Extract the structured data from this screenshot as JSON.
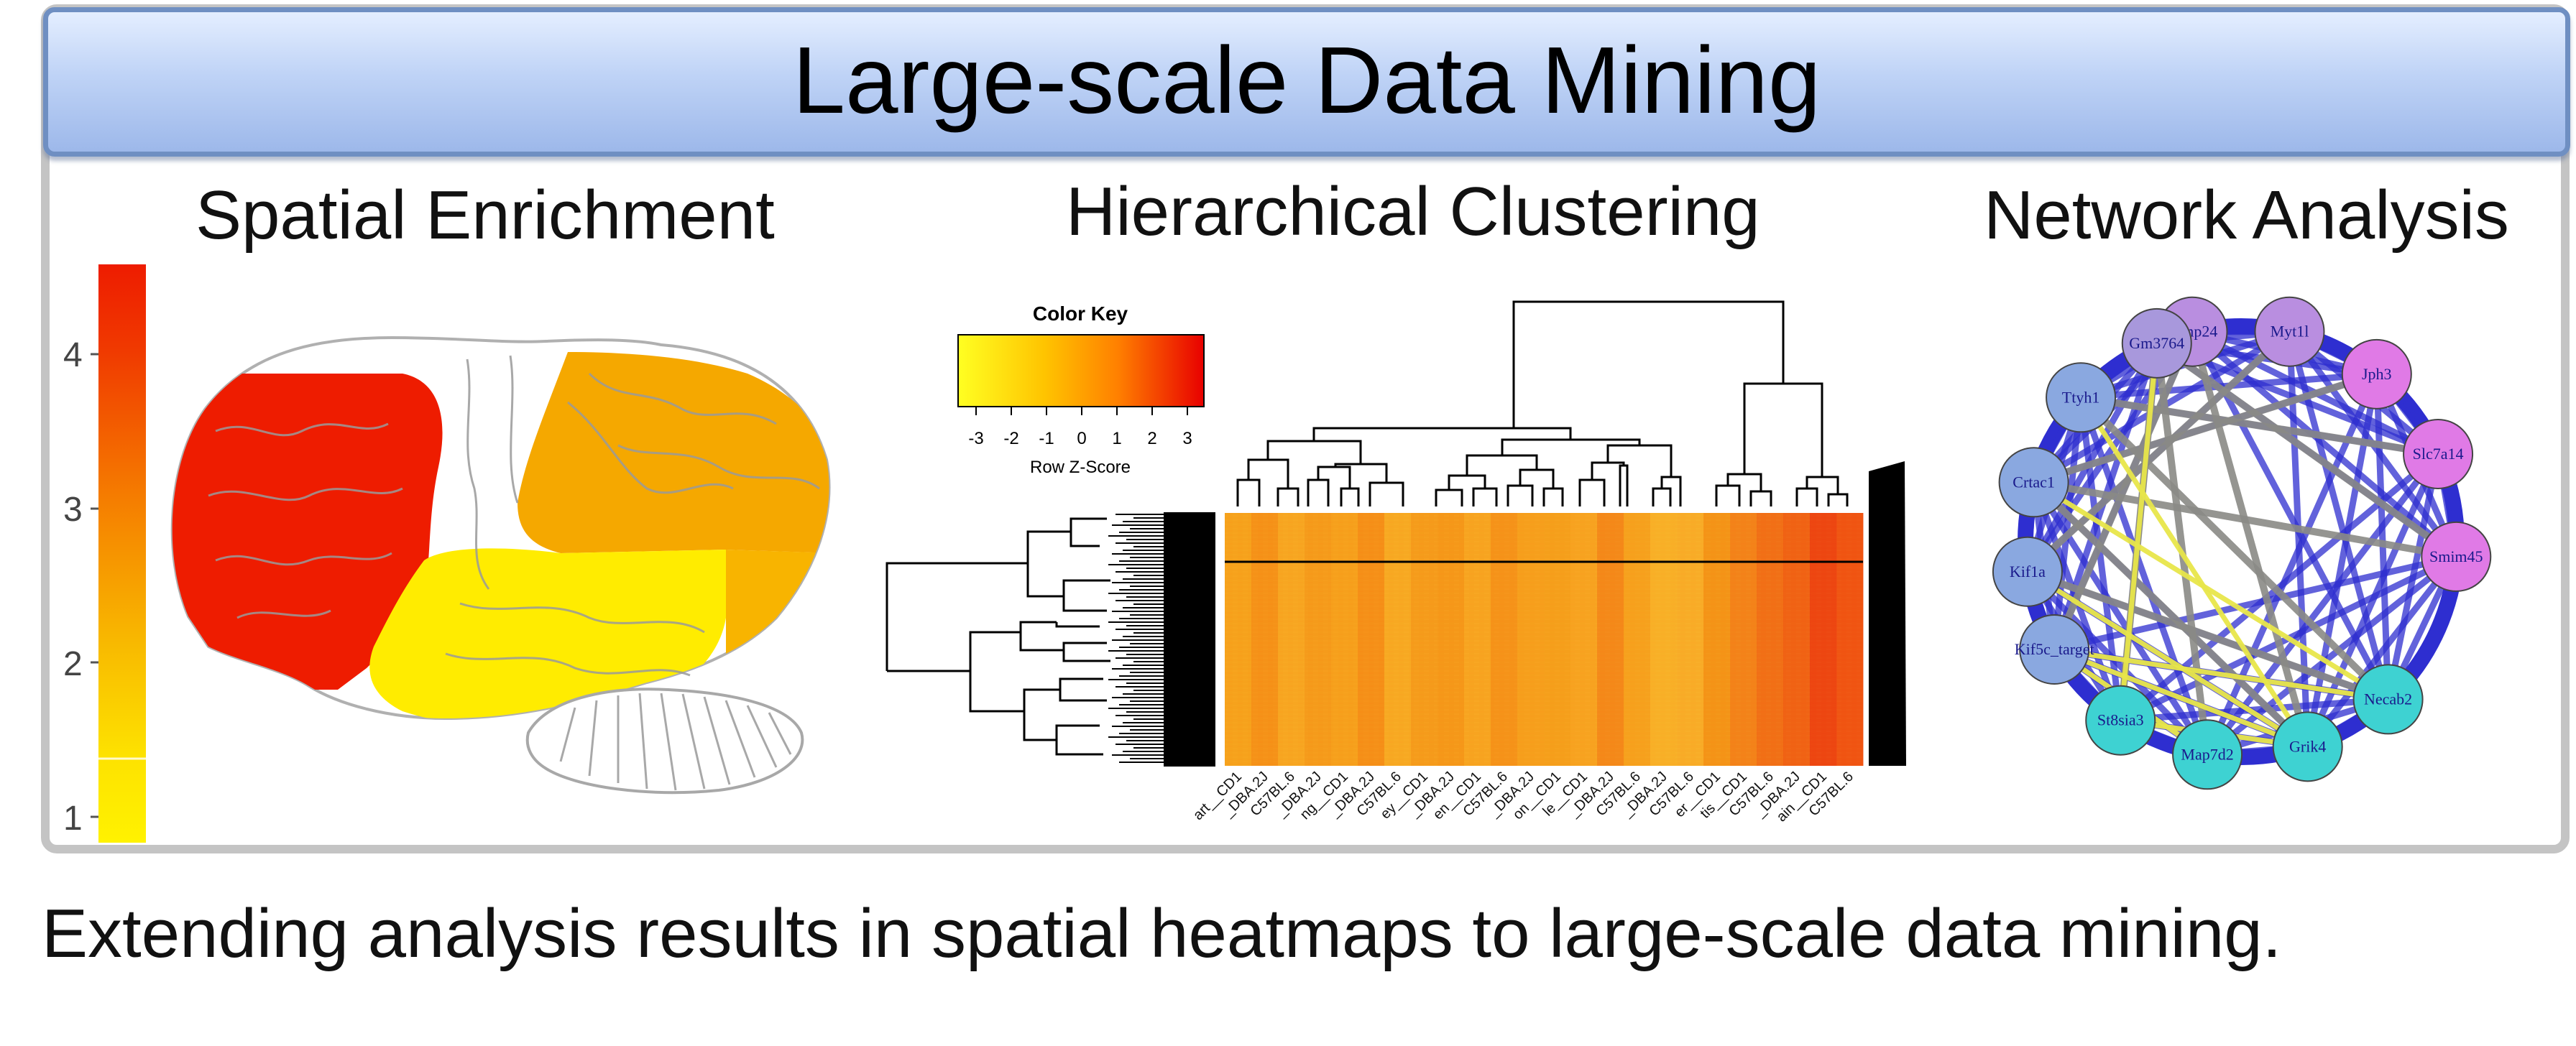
{
  "main_title": "Large-scale Data Mining",
  "sections": {
    "spatial": "Spatial Enrichment",
    "clustering": "Hierarchical Clustering",
    "network": "Network Analysis"
  },
  "spatial_colorbar": {
    "ticks": [
      "4",
      "3",
      "2",
      "1"
    ]
  },
  "color_key": {
    "title": "Color Key",
    "ticks": [
      "-3",
      "-2",
      "-1",
      "0",
      "1",
      "2",
      "3"
    ],
    "label": "Row Z-Score"
  },
  "sample_labels": [
    "art__CD1",
    "_DBA.2J",
    "C57BL.6",
    "_DBA.2J",
    "ng__CD1",
    "_DBA.2J",
    "C57BL.6",
    "ey__CD1",
    "_DBA.2J",
    "en__CD1",
    "C57BL.6",
    "_DBA.2J",
    "on__CD1",
    "le__CD1",
    "_DBA.2J",
    "C57BL.6",
    "_DBA.2J",
    "C57BL.6",
    "er__CD1",
    "tis__CD1",
    "C57BL.6",
    "_DBA.2J",
    "ain__CD1",
    "C57BL.6"
  ],
  "network_nodes": [
    "Mmp24",
    "Myt1l",
    "Jph3",
    "Slc7a14",
    "Smim45",
    "Necab2",
    "Grik4",
    "Map7d2",
    "St8sia3",
    "Kif5c_target",
    "Kif1a",
    "Crtac1",
    "Ttyh1",
    "Gm3764"
  ],
  "colors": {
    "banner_border": "#6f8fc2",
    "heat_high": "#ee1c00",
    "heat_mid": "#f5a800",
    "heat_low": "#fff200",
    "edge_blue": "#2e2ed0",
    "edge_grey": "#8a8a86",
    "edge_yellow": "#e8e64a",
    "node_purple": "#b98ee0",
    "node_violet": "#a898dc",
    "node_magenta": "#e07ae6",
    "node_blue": "#8aa8e0",
    "node_cyan": "#3ed2d2"
  },
  "caption": "Extending analysis results in spatial heatmaps to large-scale data mining."
}
